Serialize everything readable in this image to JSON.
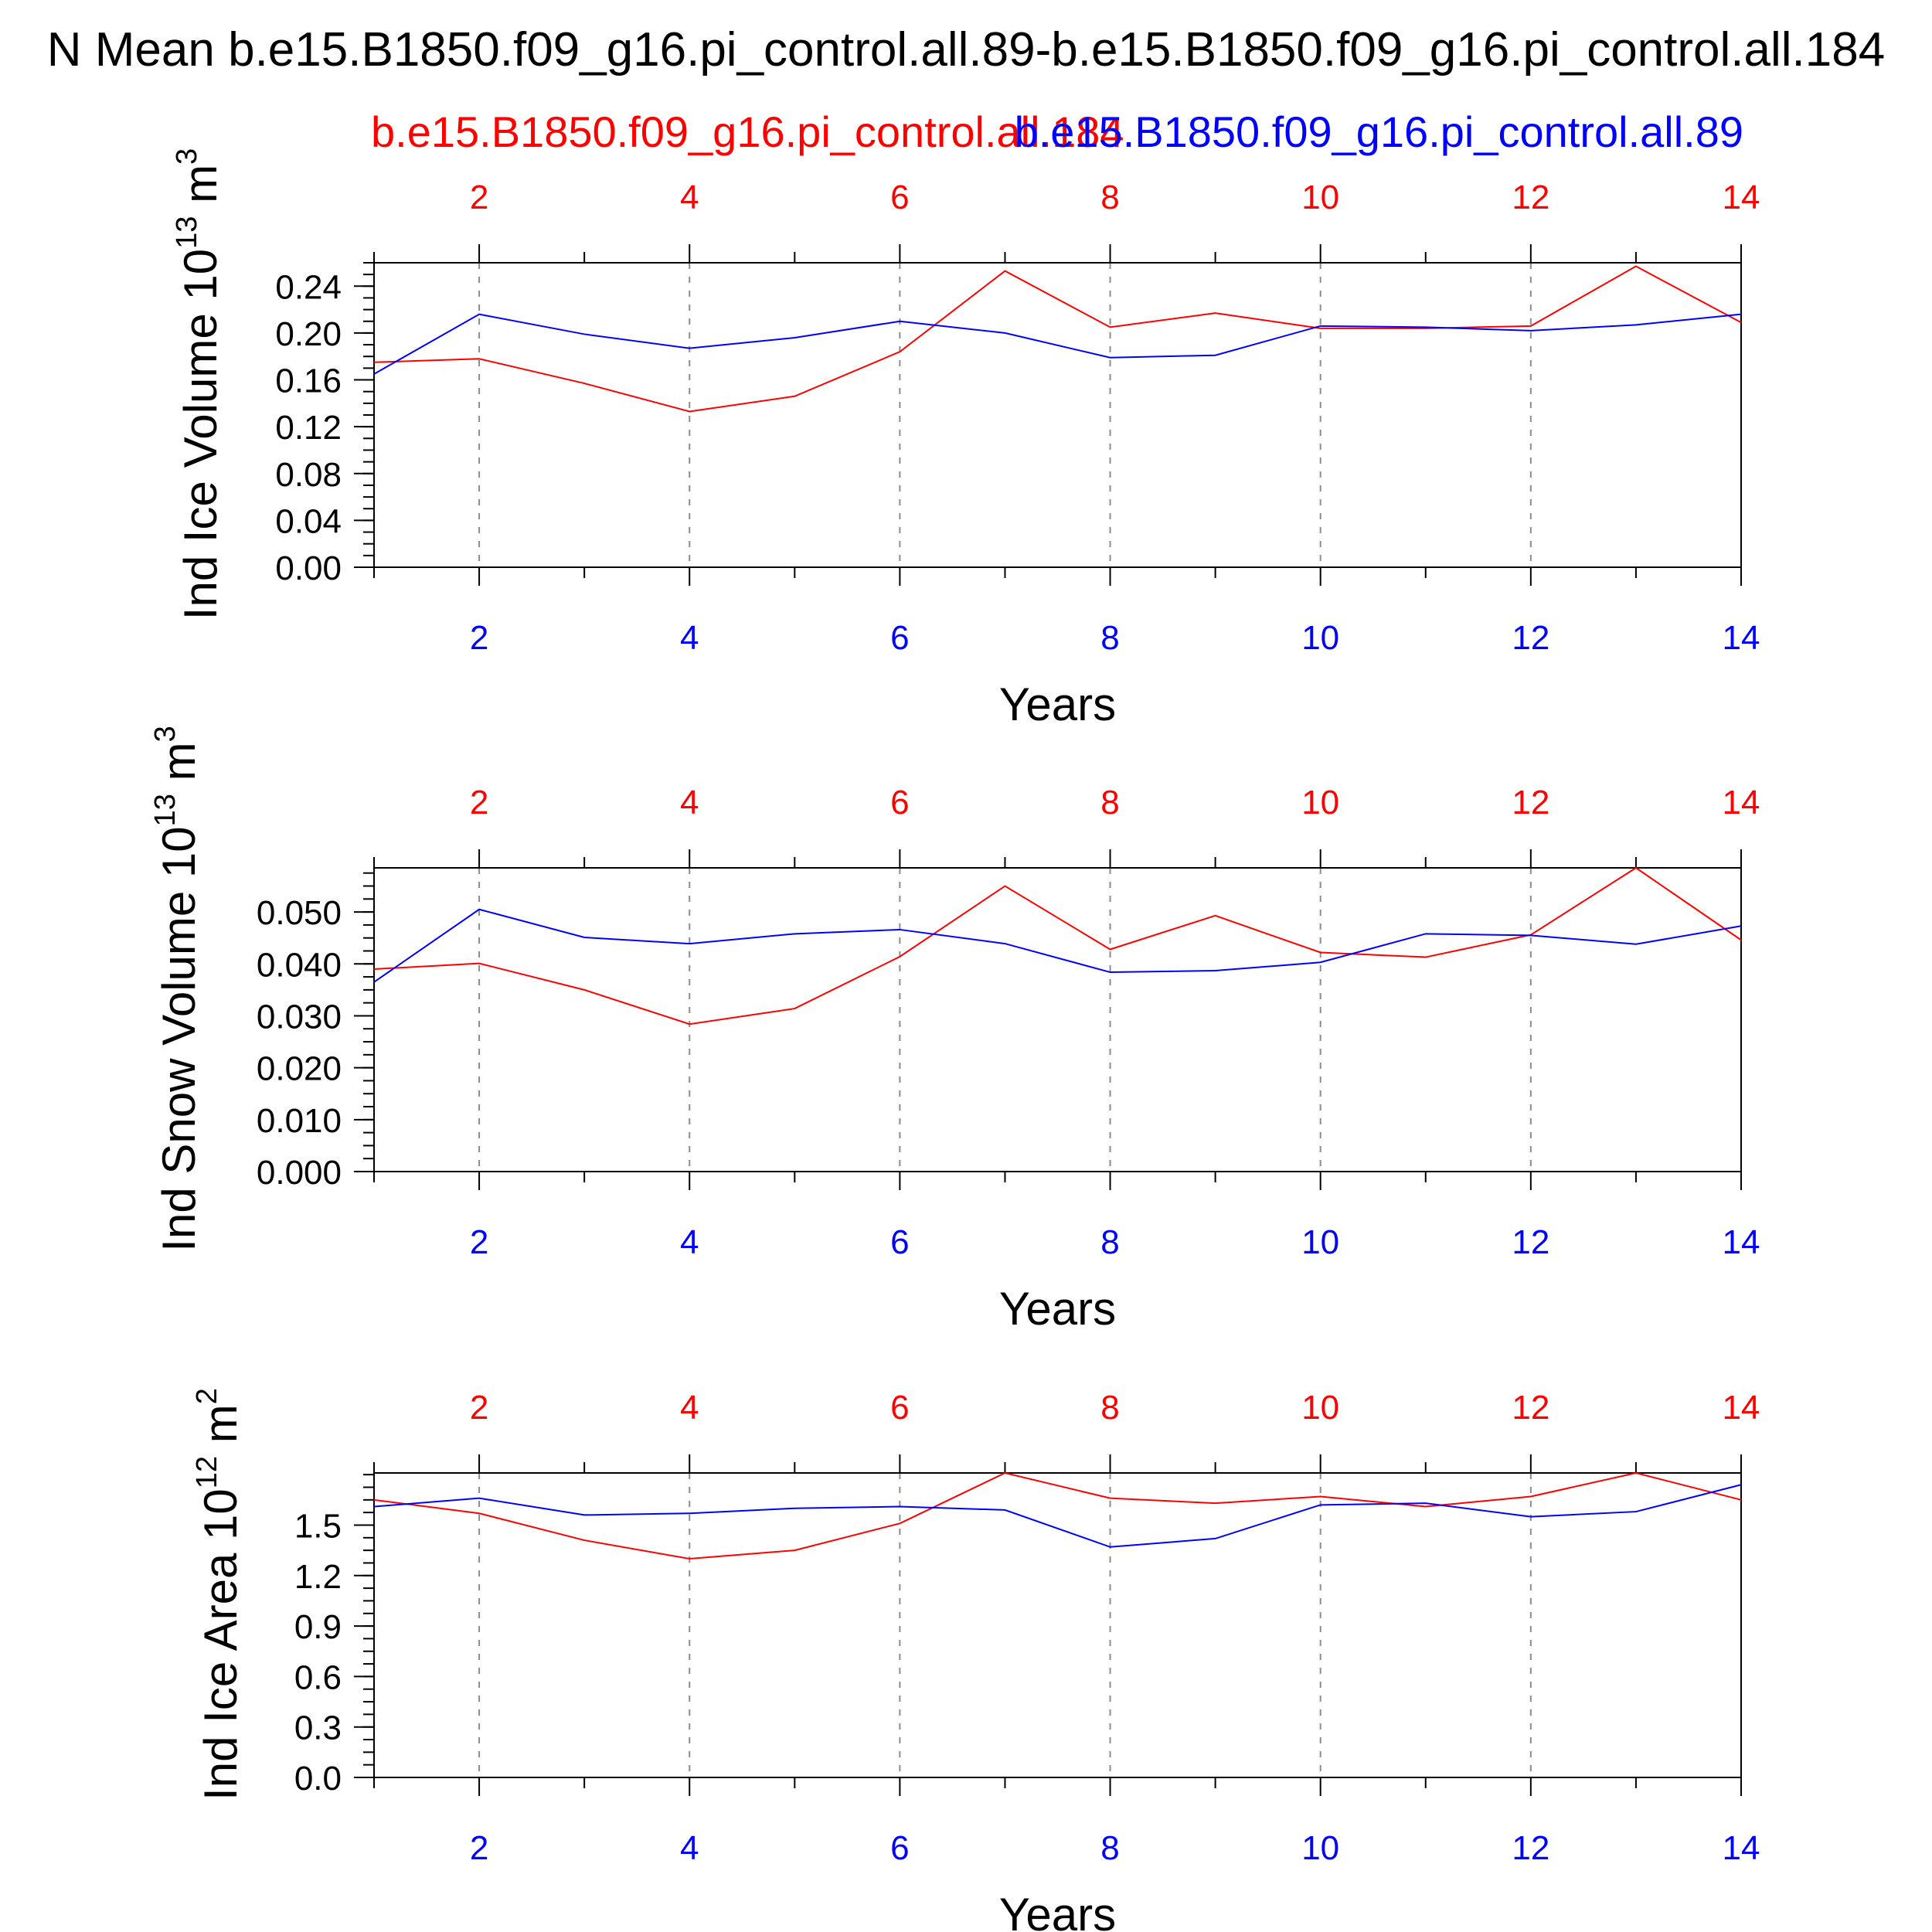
{
  "title": "N Mean b.e15.B1850.f09_g16.pi_control.all.89-b.e15.B1850.f09_g16.pi_control.all.184",
  "legend": {
    "red": "b.e15.B1850.f09_g16.pi_control.all.184",
    "blue": "b.e15.B1850.f09_g16.pi_control.all.89"
  },
  "colors": {
    "red": "#ff0000",
    "blue": "#0000ff",
    "axis": "#000000",
    "grid": "#8c8c8c"
  },
  "chart_data": [
    {
      "type": "line",
      "ylabel": "Ind Ice Volume 10",
      "ylabel_exp": "13",
      "ylabel_unit": " m",
      "ylabel_unit_exp": "3",
      "xlabel": "Years",
      "xlim": [
        1,
        14
      ],
      "ylim": [
        0,
        0.26
      ],
      "yticks": [
        0.0,
        0.04,
        0.08,
        0.12,
        0.16,
        0.2,
        0.24
      ],
      "ytick_labels": [
        "0.00",
        "0.04",
        "0.08",
        "0.12",
        "0.16",
        "0.20",
        "0.24"
      ],
      "yminor": 0.01,
      "xticks": [
        2,
        4,
        6,
        8,
        10,
        12,
        14
      ],
      "xtick_labels": [
        "2",
        "4",
        "6",
        "8",
        "10",
        "12",
        "14"
      ],
      "grid": "vertical-dashed",
      "x": [
        1,
        2,
        3,
        4,
        5,
        6,
        7,
        8,
        9,
        10,
        11,
        12,
        13,
        14
      ],
      "series": [
        {
          "color_key": "red",
          "values": [
            0.175,
            0.178,
            0.157,
            0.133,
            0.146,
            0.184,
            0.253,
            0.205,
            0.217,
            0.204,
            0.204,
            0.206,
            0.257,
            0.209
          ]
        },
        {
          "color_key": "blue",
          "values": [
            0.165,
            0.216,
            0.199,
            0.187,
            0.196,
            0.21,
            0.2,
            0.179,
            0.181,
            0.206,
            0.205,
            0.202,
            0.207,
            0.216
          ]
        }
      ]
    },
    {
      "type": "line",
      "ylabel": "Ind Snow Volume 10",
      "ylabel_exp": "13",
      "ylabel_unit": " m",
      "ylabel_unit_exp": "3",
      "xlabel": "Years",
      "xlim": [
        1,
        14
      ],
      "ylim": [
        0,
        0.0585
      ],
      "yticks": [
        0.0,
        0.01,
        0.02,
        0.03,
        0.04,
        0.05
      ],
      "ytick_labels": [
        "0.000",
        "0.010",
        "0.020",
        "0.030",
        "0.040",
        "0.050"
      ],
      "yminor": 0.0025,
      "xticks": [
        2,
        4,
        6,
        8,
        10,
        12,
        14
      ],
      "xtick_labels": [
        "2",
        "4",
        "6",
        "8",
        "10",
        "12",
        "14"
      ],
      "grid": "vertical-dashed",
      "x": [
        1,
        2,
        3,
        4,
        5,
        6,
        7,
        8,
        9,
        10,
        11,
        12,
        13,
        14
      ],
      "series": [
        {
          "color_key": "red",
          "values": [
            0.039,
            0.0401,
            0.035,
            0.0284,
            0.0314,
            0.0414,
            0.055,
            0.0428,
            0.0493,
            0.0422,
            0.0413,
            0.0456,
            0.0585,
            0.0446
          ]
        },
        {
          "color_key": "blue",
          "values": [
            0.0365,
            0.0505,
            0.0451,
            0.0439,
            0.0458,
            0.0466,
            0.0439,
            0.0384,
            0.0387,
            0.0403,
            0.0458,
            0.0455,
            0.0438,
            0.0473
          ]
        }
      ]
    },
    {
      "type": "line",
      "ylabel": "Ind Ice Area 10",
      "ylabel_exp": "12",
      "ylabel_unit": " m",
      "ylabel_unit_exp": "2",
      "xlabel": "Years",
      "xlim": [
        1,
        14
      ],
      "ylim": [
        0,
        1.81
      ],
      "yticks": [
        0.0,
        0.3,
        0.6,
        0.9,
        1.2,
        1.5
      ],
      "ytick_labels": [
        "0.0",
        "0.3",
        "0.6",
        "0.9",
        "1.2",
        "1.5"
      ],
      "yminor": 0.075,
      "xticks": [
        2,
        4,
        6,
        8,
        10,
        12,
        14
      ],
      "xtick_labels": [
        "2",
        "4",
        "6",
        "8",
        "10",
        "12",
        "14"
      ],
      "grid": "vertical-dashed",
      "x": [
        1,
        2,
        3,
        4,
        5,
        6,
        7,
        8,
        9,
        10,
        11,
        12,
        13,
        14
      ],
      "series": [
        {
          "color_key": "red",
          "values": [
            1.65,
            1.57,
            1.41,
            1.3,
            1.35,
            1.51,
            1.81,
            1.66,
            1.63,
            1.67,
            1.61,
            1.67,
            1.81,
            1.65
          ]
        },
        {
          "color_key": "blue",
          "values": [
            1.61,
            1.66,
            1.56,
            1.57,
            1.6,
            1.61,
            1.59,
            1.37,
            1.42,
            1.62,
            1.63,
            1.55,
            1.58,
            1.74
          ]
        }
      ]
    }
  ]
}
